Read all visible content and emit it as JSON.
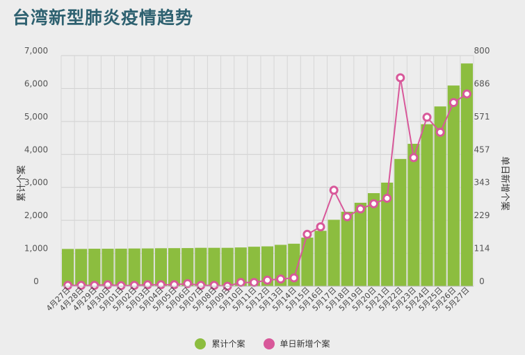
{
  "chart_data": {
    "type": "bar+line",
    "title": "台湾新型肺炎疫情趋势",
    "categories": [
      "4月27日",
      "4月28日",
      "4月29日",
      "4月30日",
      "5月01日",
      "5月02日",
      "5月03日",
      "5月04日",
      "5月05日",
      "5月06日",
      "5月07日",
      "5月08日",
      "5月09日",
      "5月10日",
      "5月11日",
      "5月12日",
      "5月13日",
      "5月14日",
      "5月15日",
      "5月16日",
      "5月17日",
      "5月18日",
      "5月19日",
      "5月20日",
      "5月21日",
      "5月22日",
      "5月23日",
      "5月24日",
      "5月25日",
      "5月26日",
      "5月27日"
    ],
    "series": [
      {
        "name": "累计个案",
        "type": "bar",
        "axis": "left",
        "color": "#8cbd3f",
        "values": [
          1132,
          1132,
          1138,
          1138,
          1140,
          1145,
          1147,
          1153,
          1156,
          1158,
          1166,
          1166,
          1166,
          1177,
          1199,
          1210,
          1256,
          1290,
          1475,
          1682,
          2017,
          2260,
          2533,
          2825,
          3144,
          3862,
          4322,
          4917,
          5456,
          6091,
          6761
        ]
      },
      {
        "name": "单日新增个案",
        "type": "line",
        "axis": "right",
        "color": "#d8589a",
        "values": [
          3,
          3,
          3,
          5,
          2,
          3,
          5,
          5,
          5,
          9,
          3,
          3,
          0,
          13,
          13,
          21,
          25,
          29,
          180,
          206,
          333,
          241,
          268,
          286,
          305,
          723,
          446,
          586,
          534,
          637,
          667
        ]
      }
    ],
    "yaxis_left": {
      "label": "累计个案",
      "min": 0,
      "max": 7000,
      "ticks": [
        "0",
        "1,000",
        "2,000",
        "3,000",
        "4,000",
        "5,000",
        "6,000",
        "7,000"
      ]
    },
    "yaxis_right": {
      "label": "单日新增个案",
      "min": 0,
      "max": 800,
      "ticks": [
        "0",
        "114",
        "229",
        "343",
        "457",
        "571",
        "686",
        "800"
      ]
    },
    "grid": true,
    "legend_position": "bottom"
  }
}
